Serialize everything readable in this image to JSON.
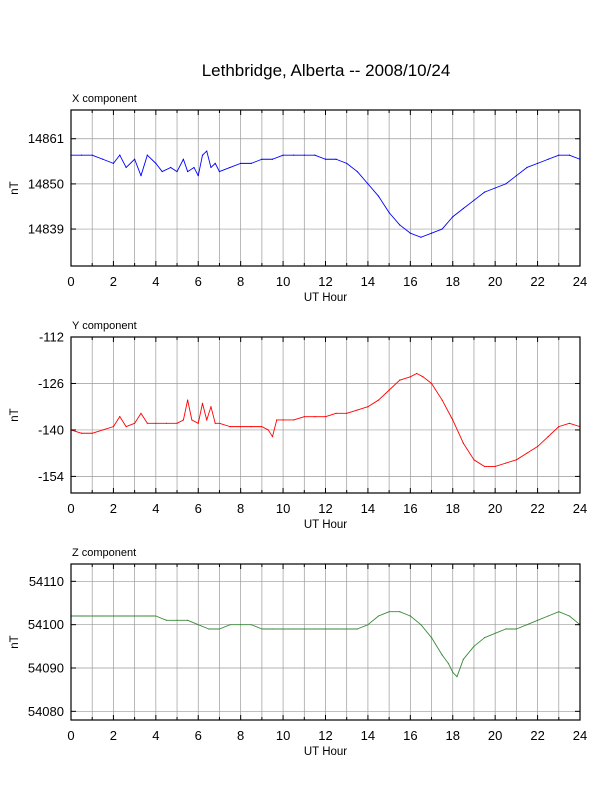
{
  "title": "Lethbridge, Alberta -- 2008/10/24",
  "chart_data": [
    {
      "type": "line",
      "panel_label": "X component",
      "xlabel": "UT Hour",
      "ylabel": "nT",
      "xlim": [
        0,
        24
      ],
      "ylim": [
        14830,
        14868
      ],
      "x_ticks": [
        0,
        2,
        4,
        6,
        8,
        10,
        12,
        14,
        16,
        18,
        20,
        22,
        24
      ],
      "y_ticks": [
        14839,
        14850,
        14861
      ],
      "grid": true,
      "color": "#0000ff",
      "series": [
        {
          "x": [
            0,
            0.5,
            1,
            1.5,
            2,
            2.3,
            2.6,
            3,
            3.3,
            3.6,
            4,
            4.3,
            4.7,
            5,
            5.3,
            5.5,
            5.8,
            6,
            6.2,
            6.4,
            6.6,
            6.8,
            7,
            7.5,
            8,
            8.5,
            9,
            9.5,
            10,
            10.5,
            11,
            11.5,
            12,
            12.5,
            13,
            13.5,
            14,
            14.5,
            15,
            15.5,
            16,
            16.5,
            17,
            17.5,
            18,
            18.5,
            19,
            19.5,
            20,
            20.5,
            21,
            21.5,
            22,
            22.5,
            23,
            23.5,
            24
          ],
          "y": [
            14857,
            14857,
            14857,
            14856,
            14855,
            14857,
            14854,
            14856,
            14852,
            14857,
            14855,
            14853,
            14854,
            14853,
            14856,
            14853,
            14854,
            14852,
            14857,
            14858,
            14854,
            14855,
            14853,
            14854,
            14855,
            14855,
            14856,
            14856,
            14857,
            14857,
            14857,
            14857,
            14856,
            14856,
            14855,
            14853,
            14850,
            14847,
            14843,
            14840,
            14838,
            14837,
            14838,
            14839,
            14842,
            14844,
            14846,
            14848,
            14849,
            14850,
            14852,
            14854,
            14855,
            14856,
            14857,
            14857,
            14856
          ]
        }
      ]
    },
    {
      "type": "line",
      "panel_label": "Y component",
      "xlabel": "UT Hour",
      "ylabel": "nT",
      "xlim": [
        0,
        24
      ],
      "ylim": [
        -159,
        -112
      ],
      "x_ticks": [
        0,
        2,
        4,
        6,
        8,
        10,
        12,
        14,
        16,
        18,
        20,
        22,
        24
      ],
      "y_ticks": [
        -112,
        -126,
        -140,
        -154
      ],
      "grid": true,
      "color": "#ff0000",
      "series": [
        {
          "x": [
            0,
            0.5,
            1,
            1.5,
            2,
            2.3,
            2.6,
            3,
            3.3,
            3.6,
            4,
            4.5,
            5,
            5.3,
            5.5,
            5.7,
            6,
            6.2,
            6.4,
            6.6,
            6.8,
            7,
            7.5,
            8,
            8.5,
            9,
            9.3,
            9.5,
            9.7,
            10,
            10.5,
            11,
            11.5,
            12,
            12.5,
            13,
            13.5,
            14,
            14.5,
            15,
            15.5,
            16,
            16.3,
            16.6,
            17,
            17.5,
            18,
            18.5,
            19,
            19.5,
            20,
            20.5,
            21,
            21.5,
            22,
            22.5,
            23,
            23.5,
            24
          ],
          "y": [
            -140,
            -141,
            -141,
            -140,
            -139,
            -136,
            -139,
            -138,
            -135,
            -138,
            -138,
            -138,
            -138,
            -137,
            -131,
            -137,
            -138,
            -132,
            -137,
            -133,
            -138,
            -138,
            -139,
            -139,
            -139,
            -139,
            -140,
            -142,
            -137,
            -137,
            -137,
            -136,
            -136,
            -136,
            -135,
            -135,
            -134,
            -133,
            -131,
            -128,
            -125,
            -124,
            -123,
            -124,
            -126,
            -131,
            -137,
            -144,
            -149,
            -151,
            -151,
            -150,
            -149,
            -147,
            -145,
            -142,
            -139,
            -138,
            -139
          ]
        }
      ]
    },
    {
      "type": "line",
      "panel_label": "Z component",
      "xlabel": "UT Hour",
      "ylabel": "nT",
      "xlim": [
        0,
        24
      ],
      "ylim": [
        54078,
        54114
      ],
      "x_ticks": [
        0,
        2,
        4,
        6,
        8,
        10,
        12,
        14,
        16,
        18,
        20,
        22,
        24
      ],
      "y_ticks": [
        54080,
        54090,
        54100,
        54110
      ],
      "grid": true,
      "color": "#3a8a3a",
      "series": [
        {
          "x": [
            0,
            0.5,
            1,
            1.5,
            2,
            2.5,
            3,
            3.5,
            4,
            4.5,
            5,
            5.5,
            6,
            6.5,
            7,
            7.5,
            8,
            8.5,
            9,
            9.5,
            10,
            10.5,
            11,
            11.5,
            12,
            12.5,
            13,
            13.5,
            14,
            14.5,
            15,
            15.5,
            16,
            16.5,
            17,
            17.5,
            17.8,
            18,
            18.2,
            18.5,
            19,
            19.5,
            20,
            20.5,
            21,
            21.5,
            22,
            22.5,
            23,
            23.5,
            24
          ],
          "y": [
            54102,
            54102,
            54102,
            54102,
            54102,
            54102,
            54102,
            54102,
            54102,
            54101,
            54101,
            54101,
            54100,
            54099,
            54099,
            54100,
            54100,
            54100,
            54099,
            54099,
            54099,
            54099,
            54099,
            54099,
            54099,
            54099,
            54099,
            54099,
            54100,
            54102,
            54103,
            54103,
            54102,
            54100,
            54097,
            54093,
            54091,
            54089,
            54088,
            54092,
            54095,
            54097,
            54098,
            54099,
            54099,
            54100,
            54101,
            54102,
            54103,
            54102,
            54100
          ]
        }
      ]
    }
  ]
}
